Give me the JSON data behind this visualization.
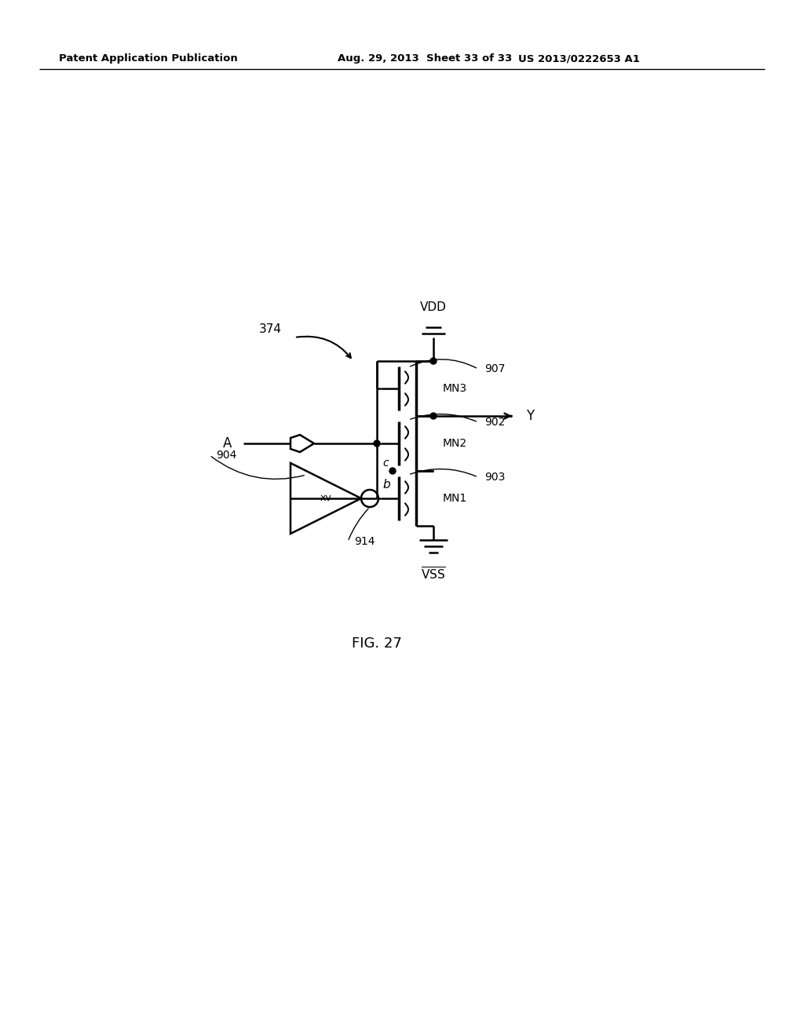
{
  "bg_color": "#ffffff",
  "line_color": "#000000",
  "header_left": "Patent Application Publication",
  "header_mid": "Aug. 29, 2013  Sheet 33 of 33",
  "header_right": "US 2013/0222653 A1",
  "fig_label": "FIG. 27",
  "label_374": "374",
  "label_A": "A",
  "label_Y": "Y",
  "label_VDD": "VDD",
  "label_VSS": "VSS",
  "label_MN1": "MN1",
  "label_MN2": "MN2",
  "label_MN3": "MN3",
  "label_907": "907",
  "label_902": "902",
  "label_903": "903",
  "label_904": "904",
  "label_914": "914",
  "label_b": "b",
  "label_c": "c",
  "label_xv": "xv"
}
